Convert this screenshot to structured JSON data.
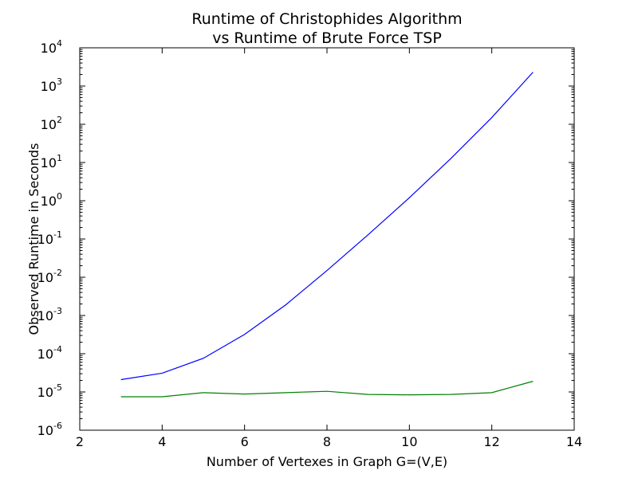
{
  "chart_data": {
    "type": "line",
    "title_lines": [
      "Runtime of Christophides Algorithm",
      "vs Runtime of Brute Force TSP"
    ],
    "xlabel": "Number of Vertexes in Graph G=(V,E)",
    "ylabel": "Observed Runtime in Seconds",
    "xlim": [
      2,
      14
    ],
    "ylim": [
      1e-06,
      10000
    ],
    "yscale": "log",
    "grid": false,
    "x_ticks": [
      2,
      4,
      6,
      8,
      10,
      12,
      14
    ],
    "y_ticks": [
      {
        "value": 1e-06,
        "base": "10",
        "exp": "-6"
      },
      {
        "value": 1e-05,
        "base": "10",
        "exp": "-5"
      },
      {
        "value": 0.0001,
        "base": "10",
        "exp": "-4"
      },
      {
        "value": 0.001,
        "base": "10",
        "exp": "-3"
      },
      {
        "value": 0.01,
        "base": "10",
        "exp": "-2"
      },
      {
        "value": 0.1,
        "base": "10",
        "exp": "-1"
      },
      {
        "value": 1,
        "base": "10",
        "exp": "0"
      },
      {
        "value": 10,
        "base": "10",
        "exp": "1"
      },
      {
        "value": 100,
        "base": "10",
        "exp": "2"
      },
      {
        "value": 1000,
        "base": "10",
        "exp": "3"
      },
      {
        "value": 10000,
        "base": "10",
        "exp": "4"
      }
    ],
    "series": [
      {
        "color": "#0000ff",
        "x": [
          3,
          4,
          5,
          6,
          7,
          8,
          9,
          10,
          11,
          12,
          13
        ],
        "y": [
          2.1e-05,
          3.1e-05,
          7.6e-05,
          0.00032,
          0.0019,
          0.015,
          0.13,
          1.2,
          12.5,
          150,
          2300
        ]
      },
      {
        "color": "#008000",
        "x": [
          3,
          4,
          5,
          6,
          7,
          8,
          9,
          10,
          11,
          12,
          13
        ],
        "y": [
          7.5e-06,
          7.5e-06,
          9.6e-06,
          8.8e-06,
          9.6e-06,
          1.04e-05,
          8.6e-06,
          8.4e-06,
          8.6e-06,
          9.6e-06,
          1.9e-05
        ]
      }
    ]
  }
}
